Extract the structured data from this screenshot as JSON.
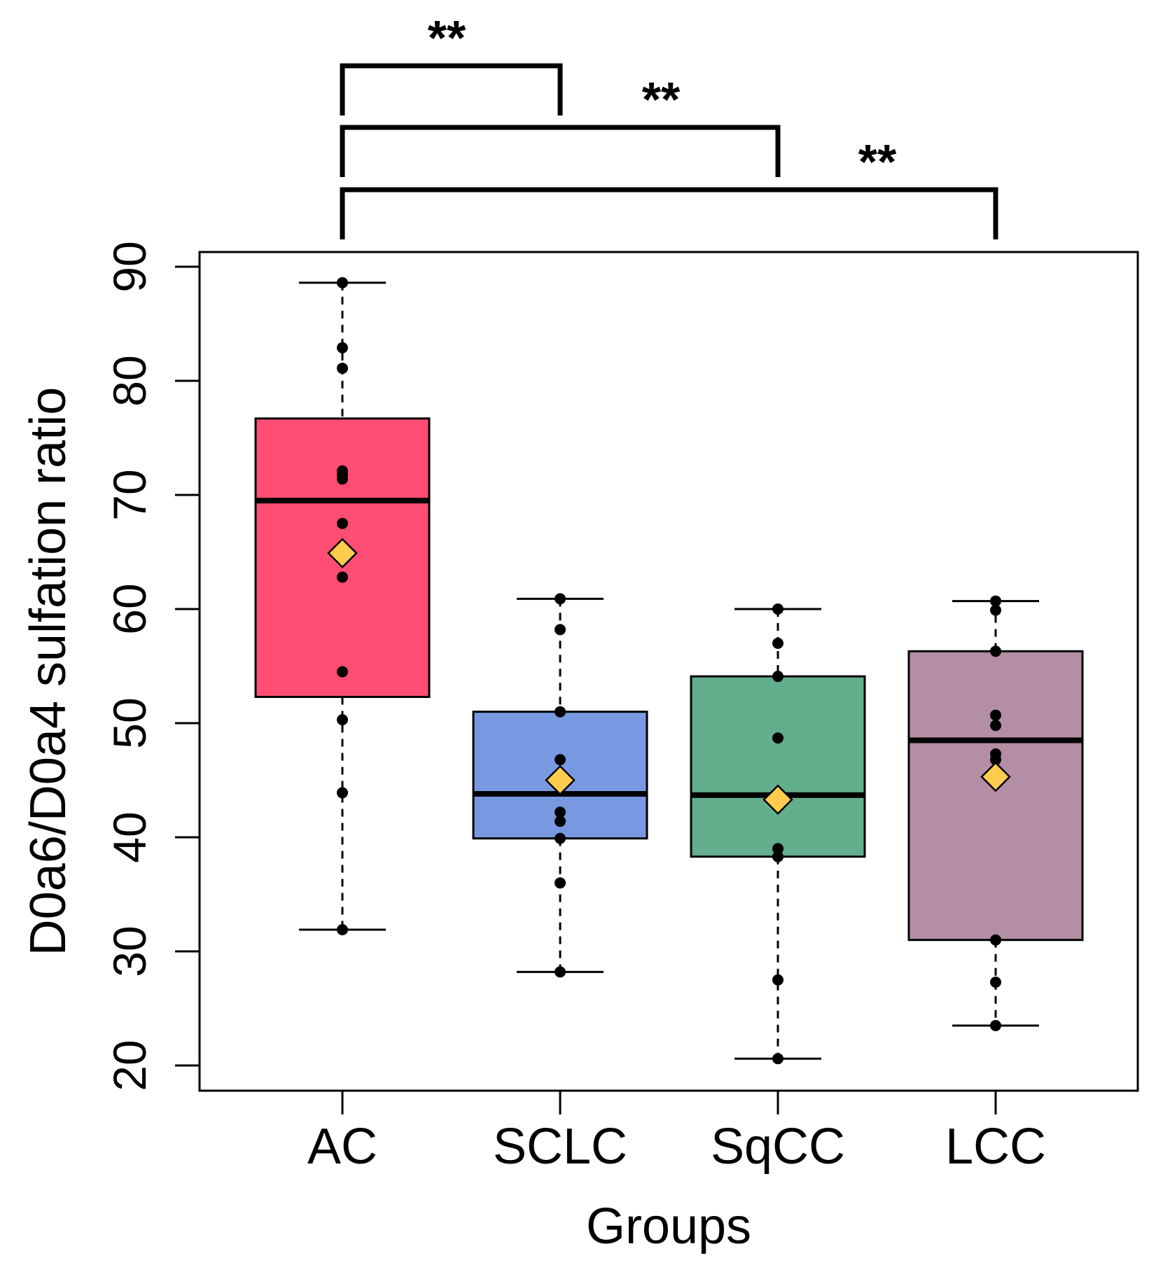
{
  "chart_data": {
    "type": "box",
    "title": "",
    "xlabel": "Groups",
    "ylabel": "D0a6/D0a4 sulfation ratio",
    "ylim": [
      18,
      91.5
    ],
    "yticks": [
      20,
      30,
      40,
      50,
      60,
      70,
      80,
      90
    ],
    "categories": [
      "AC",
      "SCLC",
      "SqCC",
      "LCC"
    ],
    "boxes": [
      {
        "name": "AC",
        "color": "#ff4d73",
        "whisker_low": 31.9,
        "q1": 52.3,
        "median": 69.5,
        "q3": 76.7,
        "whisker_high": 88.6,
        "mean": 64.9,
        "points": [
          88.6,
          82.9,
          81.1,
          72.1,
          71.8,
          71.4,
          67.5,
          62.8,
          54.5,
          50.3,
          43.9,
          31.9
        ]
      },
      {
        "name": "SCLC",
        "color": "#7899e2",
        "whisker_low": 28.2,
        "q1": 39.9,
        "median": 43.8,
        "q3": 51.0,
        "whisker_high": 60.9,
        "mean": 45.0,
        "points": [
          60.9,
          58.2,
          51.0,
          46.8,
          45.1,
          42.2,
          41.4,
          39.9,
          36.0,
          28.2
        ]
      },
      {
        "name": "SqCC",
        "color": "#63ae8c",
        "whisker_low": 20.6,
        "q1": 38.3,
        "median": 43.7,
        "q3": 54.1,
        "whisker_high": 60.0,
        "mean": 43.3,
        "points": [
          60.0,
          57.0,
          54.1,
          48.7,
          43.7,
          39.0,
          38.3,
          27.5,
          20.6
        ]
      },
      {
        "name": "LCC",
        "color": "#b48ea4",
        "whisker_low": 23.5,
        "q1": 31.0,
        "median": 48.5,
        "q3": 56.3,
        "whisker_high": 60.7,
        "mean": 45.3,
        "points": [
          60.7,
          59.9,
          56.3,
          50.7,
          49.8,
          47.3,
          46.8,
          31.0,
          27.3,
          23.5
        ]
      }
    ],
    "mean_marker_color": "#ffcc4d",
    "significance": [
      {
        "from": "AC",
        "to": "SCLC",
        "label": "**"
      },
      {
        "from": "AC",
        "to": "SqCC",
        "label": "**"
      },
      {
        "from": "AC",
        "to": "LCC",
        "label": "**"
      }
    ]
  }
}
